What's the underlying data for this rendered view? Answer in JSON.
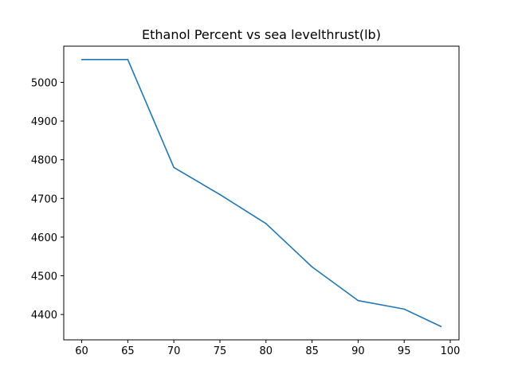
{
  "chart_data": {
    "type": "line",
    "title": "Ethanol Percent vs sea levelthrust(lb)",
    "xlabel": "",
    "ylabel": "",
    "x": [
      60,
      65,
      70,
      75,
      80,
      85,
      90,
      95,
      99
    ],
    "series": [
      {
        "values": [
          5059,
          5059,
          4780,
          4710,
          4635,
          4523,
          4436,
          4414,
          4369
        ]
      }
    ],
    "xlim": [
      58.05,
      100.95
    ],
    "ylim": [
      4334.5,
      5093.5
    ],
    "xticks": [
      "60",
      "65",
      "70",
      "75",
      "80",
      "85",
      "90",
      "95",
      "100"
    ],
    "yticks": [
      "4400",
      "4500",
      "4600",
      "4700",
      "4800",
      "4900",
      "5000"
    ],
    "grid": false,
    "legend": "none",
    "colors": {
      "line": "#1f77b4",
      "axes": "#000000",
      "background": "#ffffff"
    }
  }
}
